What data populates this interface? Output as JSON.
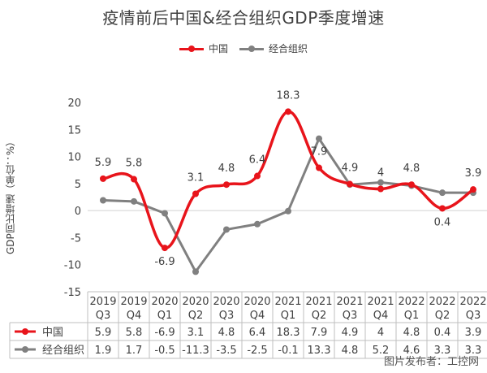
{
  "chart_data": {
    "type": "line",
    "title": "疫情前后中国&经合组织GDP季度增速",
    "ylabel": "GDP同比增速（单位：%）",
    "xlabel": "",
    "ylim": [
      -15,
      20
    ],
    "yticks": [
      -15,
      -10,
      -5,
      0,
      5,
      10,
      15,
      20
    ],
    "legend_position": "top",
    "grid": false,
    "categories": [
      [
        "2019",
        "Q3"
      ],
      [
        "2019",
        "Q4"
      ],
      [
        "2020",
        "Q1"
      ],
      [
        "2020",
        "Q2"
      ],
      [
        "2020",
        "Q3"
      ],
      [
        "2020",
        "Q4"
      ],
      [
        "2021",
        "Q1"
      ],
      [
        "2021",
        "Q2"
      ],
      [
        "2021",
        "Q3"
      ],
      [
        "2021",
        "Q4"
      ],
      [
        "2022",
        "Q1"
      ],
      [
        "2022",
        "Q2"
      ],
      [
        "2022",
        "Q3"
      ]
    ],
    "series": [
      {
        "name": "中国",
        "color": "#e8141b",
        "values": [
          5.9,
          5.8,
          -6.9,
          3.1,
          4.8,
          6.4,
          18.3,
          7.9,
          4.9,
          4,
          4.8,
          0.4,
          3.9
        ],
        "labels": [
          "5.9",
          "5.8",
          "-6.9",
          "3.1",
          "4.8",
          "6.4",
          "18.3",
          "7.9",
          "4.9",
          "4",
          "4.8",
          "0.4",
          "3.9"
        ]
      },
      {
        "name": "经合组织",
        "color": "#808080",
        "values": [
          1.9,
          1.7,
          -0.5,
          -11.3,
          -3.5,
          -2.5,
          -0.1,
          13.3,
          4.8,
          5.2,
          4.6,
          3.3,
          3.3
        ],
        "labels": [
          "1.9",
          "1.7",
          "-0.5",
          "-11.3",
          "-3.5",
          "-2.5",
          "-0.1",
          "13.3",
          "4.8",
          "5.2",
          "4.6",
          "3.3",
          "3.3"
        ]
      }
    ]
  },
  "watermark": "图片发布者：工控网"
}
